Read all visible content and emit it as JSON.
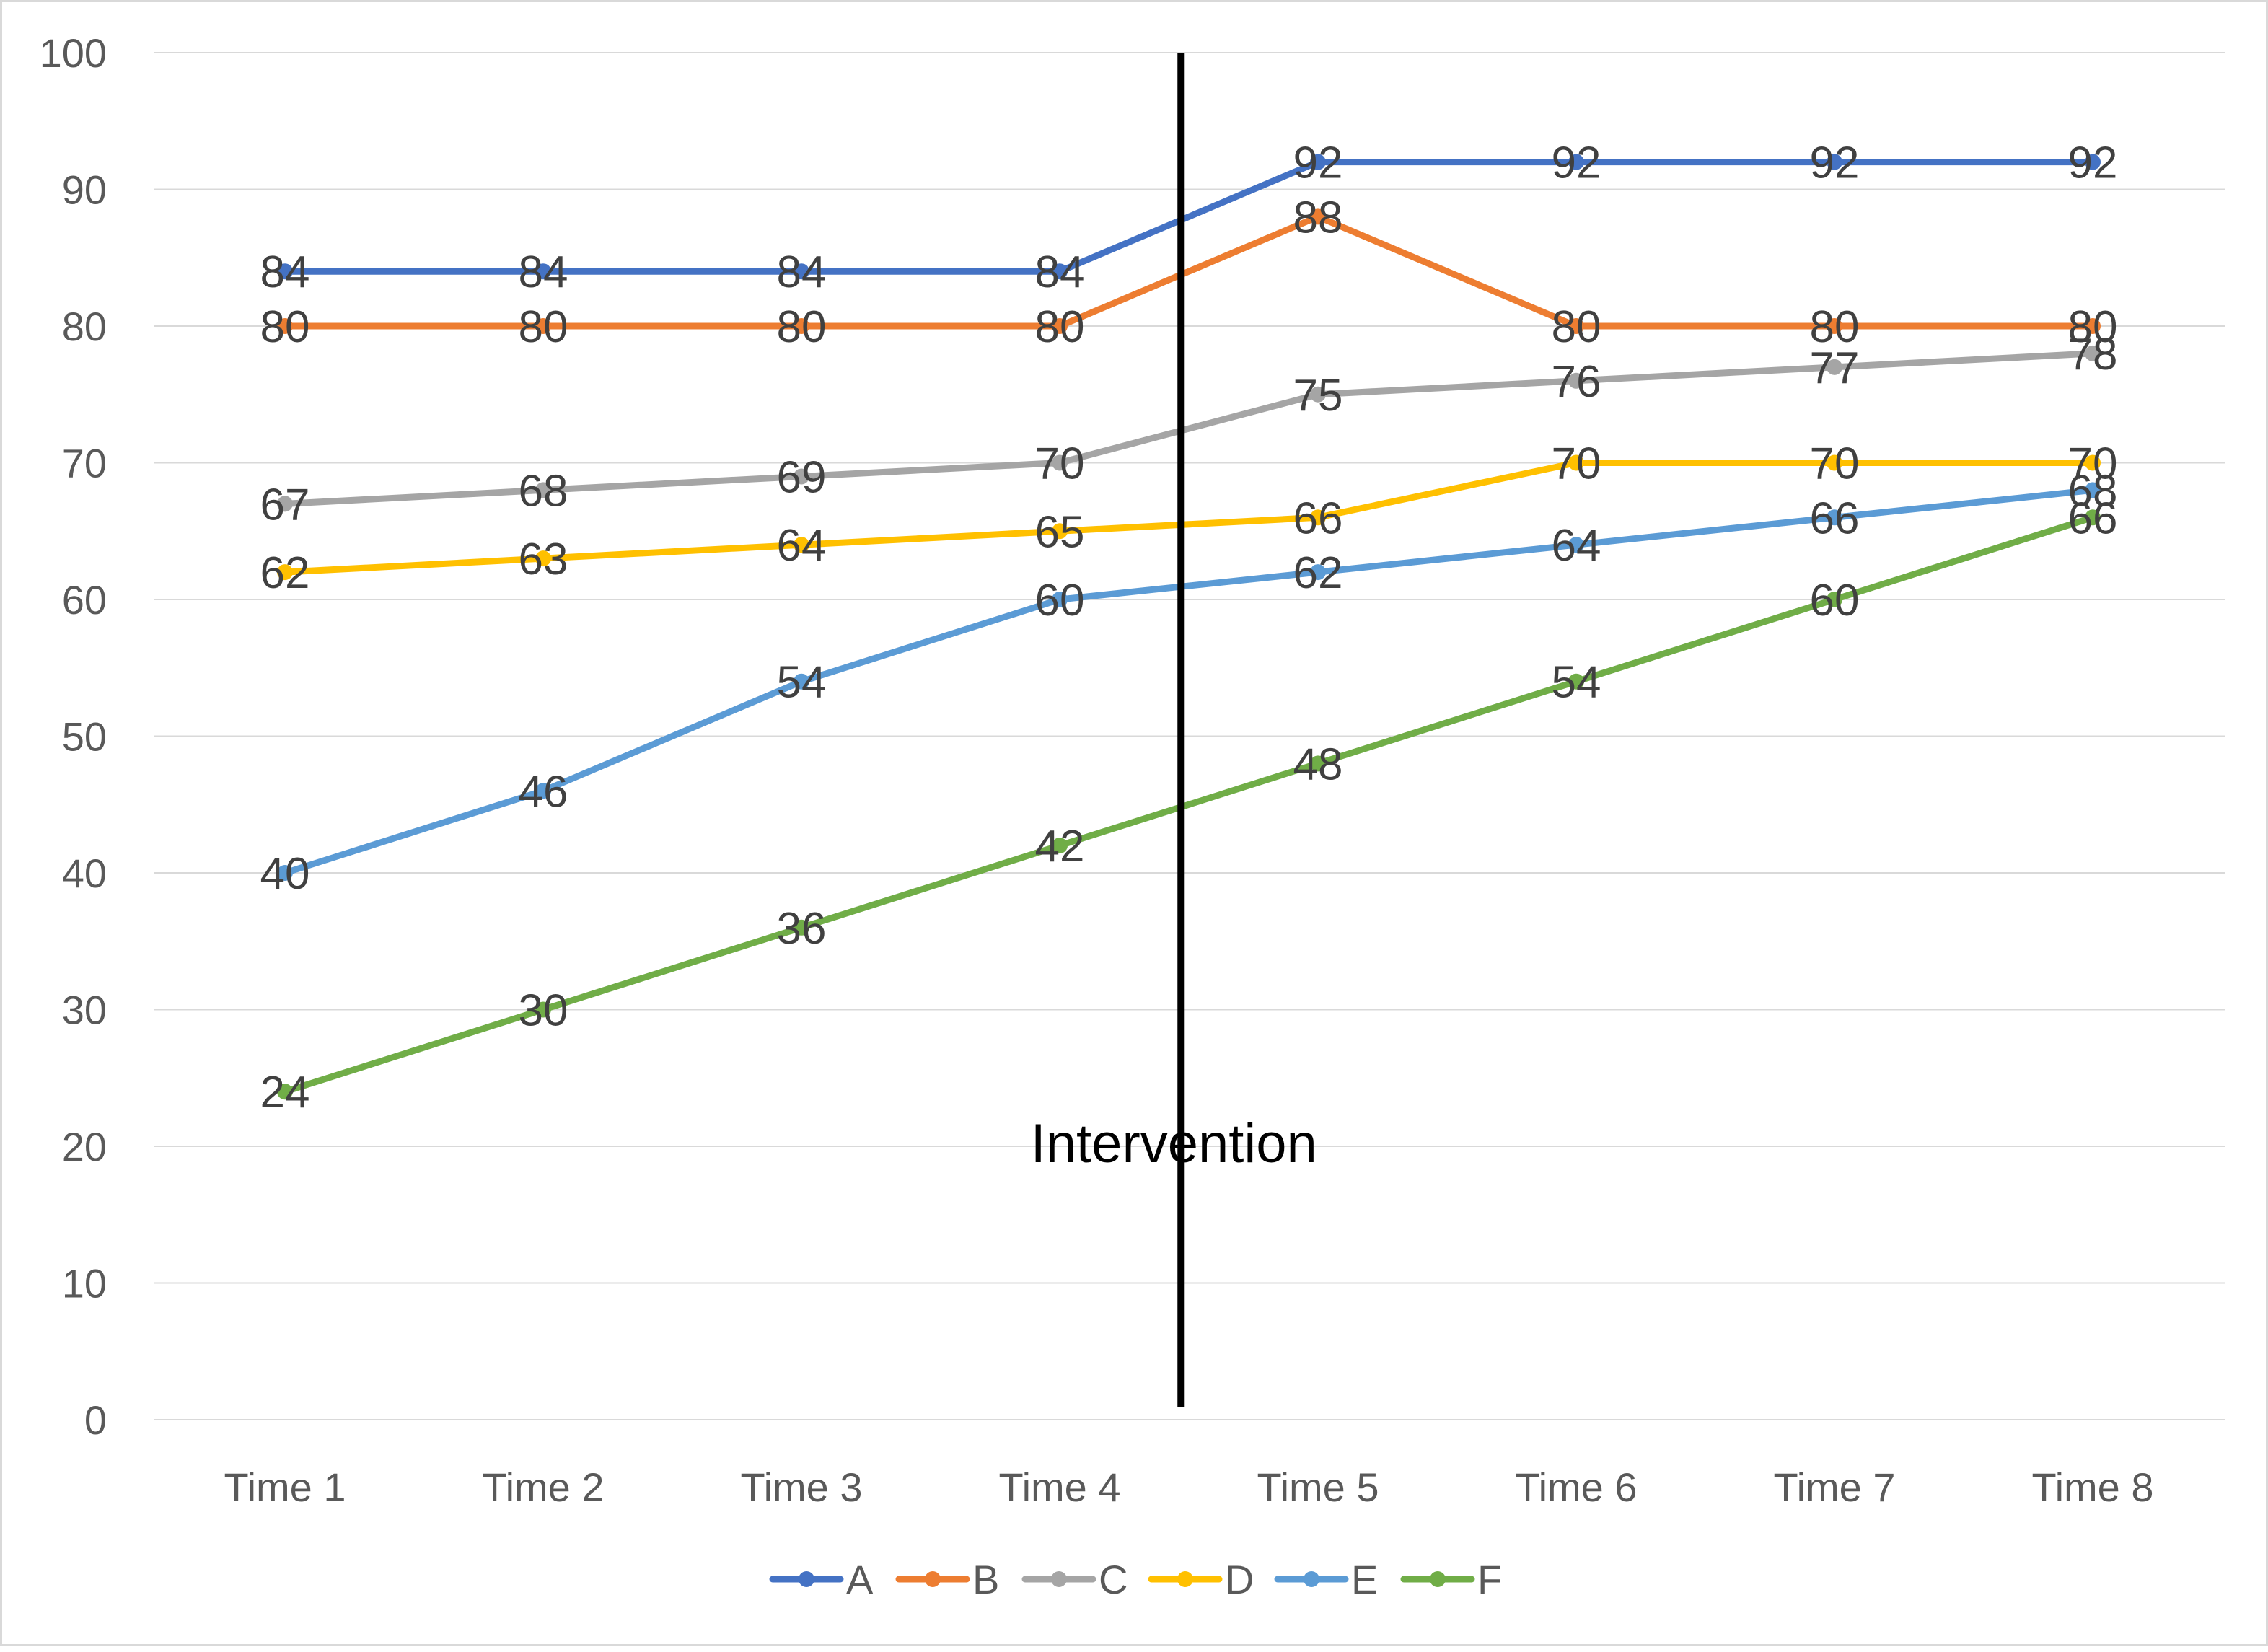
{
  "chart_data": {
    "type": "line",
    "title": "",
    "xlabel": "",
    "ylabel": "",
    "categories": [
      "Time 1",
      "Time 2",
      "Time 3",
      "Time 4",
      "Time 5",
      "Time 6",
      "Time 7",
      "Time 8"
    ],
    "ylim": [
      0,
      100
    ],
    "yticks": [
      "0",
      "10",
      "20",
      "30",
      "40",
      "50",
      "60",
      "70",
      "80",
      "90",
      "100"
    ],
    "grid": true,
    "legend_position": "bottom",
    "data_labels": true,
    "series": [
      {
        "name": "A",
        "color": "#4472c4",
        "values": [
          84,
          84,
          84,
          84,
          92,
          92,
          92,
          92
        ]
      },
      {
        "name": "B",
        "color": "#ed7d31",
        "values": [
          80,
          80,
          80,
          80,
          88,
          80,
          80,
          80
        ]
      },
      {
        "name": "C",
        "color": "#a5a5a5",
        "values": [
          67,
          68,
          69,
          70,
          75,
          76,
          77,
          78
        ]
      },
      {
        "name": "D",
        "color": "#ffc000",
        "values": [
          62,
          63,
          64,
          65,
          66,
          70,
          70,
          70
        ]
      },
      {
        "name": "E",
        "color": "#5b9bd5",
        "values": [
          40,
          46,
          54,
          60,
          62,
          64,
          66,
          68
        ]
      },
      {
        "name": "F",
        "color": "#70ad47",
        "values": [
          24,
          30,
          36,
          42,
          48,
          54,
          60,
          66
        ]
      }
    ],
    "annotations": [
      {
        "text": "Intervention",
        "type": "vertical-line",
        "between": [
          "Time 4",
          "Time 5"
        ]
      }
    ]
  }
}
